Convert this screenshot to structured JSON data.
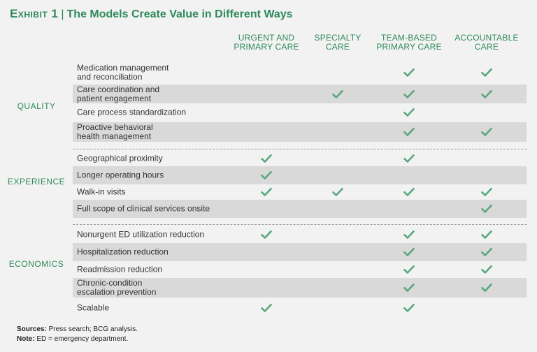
{
  "title": {
    "exhibit": "Exhibit 1",
    "separator": "|",
    "text": "The Models Create Value in Different Ways"
  },
  "columns": [
    {
      "id": "urgent",
      "line1": "Urgent and",
      "line2": "primary care"
    },
    {
      "id": "specialty",
      "line1": "Specialty",
      "line2": "care"
    },
    {
      "id": "team",
      "line1": "Team-based",
      "line2": "primary care"
    },
    {
      "id": "accountable",
      "line1": "Accountable",
      "line2": "care"
    }
  ],
  "sections": [
    {
      "name": "QUALITY"
    },
    {
      "name": "EXPERIENCE"
    },
    {
      "name": "ECONOMICS"
    }
  ],
  "rows": [
    {
      "section": 0,
      "line1": "Medication management",
      "line2": "and reconciliation",
      "checks": [
        false,
        false,
        true,
        true
      ]
    },
    {
      "section": 0,
      "line1": "Care coordination and",
      "line2": "patient engagement",
      "checks": [
        false,
        true,
        true,
        true
      ]
    },
    {
      "section": 0,
      "line1": "Care process standardization",
      "line2": "",
      "checks": [
        false,
        false,
        true,
        false
      ]
    },
    {
      "section": 0,
      "line1": "Proactive behavioral",
      "line2": "health management",
      "checks": [
        false,
        false,
        true,
        true
      ]
    },
    {
      "section": 1,
      "line1": "Geographical proximity",
      "line2": "",
      "checks": [
        true,
        false,
        true,
        false
      ]
    },
    {
      "section": 1,
      "line1": "Longer operating hours",
      "line2": "",
      "checks": [
        true,
        false,
        false,
        false
      ]
    },
    {
      "section": 1,
      "line1": "Walk-in visits",
      "line2": "",
      "checks": [
        true,
        true,
        true,
        true
      ]
    },
    {
      "section": 1,
      "line1": "Full scope of clinical services onsite",
      "line2": "",
      "checks": [
        false,
        false,
        false,
        true
      ]
    },
    {
      "section": 2,
      "line1": "Nonurgent ED utilization reduction",
      "line2": "",
      "checks": [
        true,
        false,
        true,
        true
      ]
    },
    {
      "section": 2,
      "line1": "Hospitalization reduction",
      "line2": "",
      "checks": [
        false,
        false,
        true,
        true
      ]
    },
    {
      "section": 2,
      "line1": "Readmission reduction",
      "line2": "",
      "checks": [
        false,
        false,
        true,
        true
      ]
    },
    {
      "section": 2,
      "line1": "Chronic-condition",
      "line2": "escalation prevention",
      "checks": [
        false,
        false,
        true,
        true
      ]
    },
    {
      "section": 2,
      "line1": "Scalable",
      "line2": "",
      "checks": [
        true,
        false,
        true,
        false
      ]
    }
  ],
  "footer": {
    "sources_label": "Sources:",
    "sources_text": "Press search; BCG analysis.",
    "note_label": "Note:",
    "note_text": "ED = emergency department."
  },
  "colors": {
    "accent": "#2e8a5b",
    "check": "#5aa87d",
    "shade": "#d9d9d9"
  },
  "icons": {
    "check": "checkmark-icon"
  }
}
